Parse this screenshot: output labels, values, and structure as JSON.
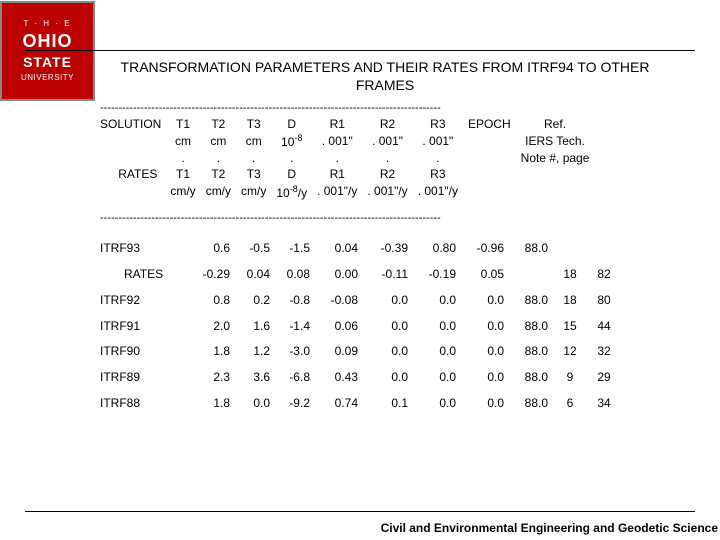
{
  "logo": {
    "top": "T · H · E",
    "ohio": "OHIO",
    "state": "STATE",
    "univ": "UNIVERSITY"
  },
  "title": "TRANSFORMATION PARAMETERS AND THEIR RATES FROM ITRF94 TO OTHER FRAMES",
  "dashline": "---------------------------------------------------------------------------------------------",
  "hdr": {
    "sol": "SOLUTION",
    "t1": "T1",
    "t2": "T2",
    "t3": "T3",
    "d": "D",
    "r1": "R1",
    "r2": "R2",
    "r3": "R3",
    "epoch": "EPOCH",
    "ref": "Ref."
  },
  "units1": {
    "cm": "cm",
    "d": "10",
    "dsup": "-8",
    "arc": ". 001\"",
    "iers": "IERS Tech."
  },
  "dotrow": {
    "dot": ".",
    "note": "Note #, page"
  },
  "rates_hdr": {
    "lbl": "RATES",
    "t1": "T1",
    "t2": "T2",
    "t3": "T3",
    "d": "D",
    "r1": "R1",
    "r2": "R2",
    "r3": "R3"
  },
  "units2": {
    "cmy": "cm/y",
    "dy": "10",
    "dysup": "-8",
    "dyunit": "/y",
    "arcy": ". 001\"/y"
  },
  "rows": [
    {
      "lbl": "ITRF93",
      "t1": "0.6",
      "t2": "-0.5",
      "t3": "-1.5",
      "d": "0.04",
      "r1": "-0.39",
      "r2": "0.80",
      "r3": "-0.96",
      "epoch": "88.0",
      "c1": "",
      "c2": ""
    },
    {
      "lbl": "RATES",
      "t1": "-0.29",
      "t2": "0.04",
      "t3": "0.08",
      "d": "0.00",
      "r1": "-0.11",
      "r2": "-0.19",
      "r3": "0.05",
      "epoch": "",
      "c1": "18",
      "c2": "82"
    },
    {
      "lbl": "ITRF92",
      "t1": "0.8",
      "t2": "0.2",
      "t3": "-0.8",
      "d": "-0.08",
      "r1": "0.0",
      "r2": "0.0",
      "r3": "0.0",
      "epoch": "88.0",
      "c1": "18",
      "c2": "80"
    },
    {
      "lbl": "ITRF91",
      "t1": "2.0",
      "t2": "1.6",
      "t3": "-1.4",
      "d": "0.06",
      "r1": "0.0",
      "r2": "0.0",
      "r3": "0.0",
      "epoch": "88.0",
      "c1": "15",
      "c2": "44"
    },
    {
      "lbl": "ITRF90",
      "t1": "1.8",
      "t2": "1.2",
      "t3": "-3.0",
      "d": "0.09",
      "r1": "0.0",
      "r2": "0.0",
      "r3": "0.0",
      "epoch": "88.0",
      "c1": "12",
      "c2": "32"
    },
    {
      "lbl": "ITRF89",
      "t1": "2.3",
      "t2": "3.6",
      "t3": "-6.8",
      "d": "0.43",
      "r1": "0.0",
      "r2": "0.0",
      "r3": "0.0",
      "epoch": "88.0",
      "c1": "9",
      "c2": "29"
    },
    {
      "lbl": "ITRF88",
      "t1": "1.8",
      "t2": "0.0",
      "t3": "-9.2",
      "d": "0.74",
      "r1": "0.1",
      "r2": "0.0",
      "r3": "0.0",
      "epoch": "88.0",
      "c1": "6",
      "c2": "34"
    }
  ],
  "footer": "Civil and Environmental Engineering and Geodetic Science"
}
